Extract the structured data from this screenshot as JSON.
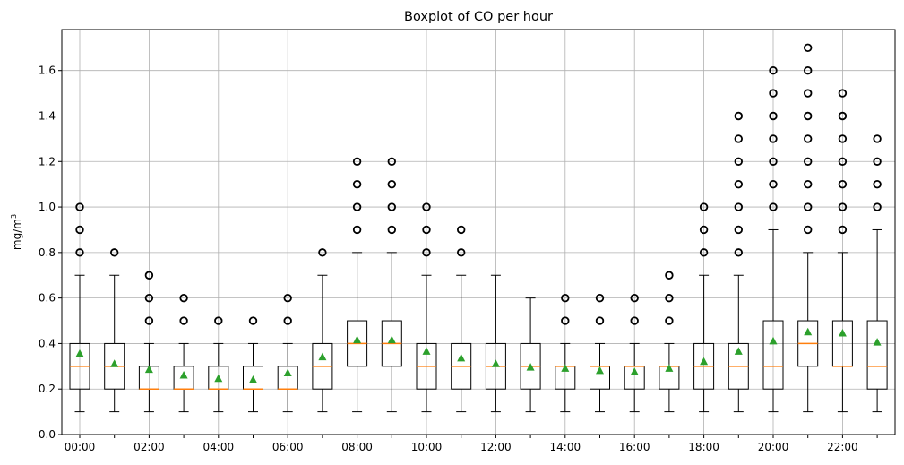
{
  "chart_data": {
    "type": "boxplot",
    "title": "Boxplot of CO per hour",
    "xlabel": "",
    "ylabel": "mg/m",
    "ylabel_superscript": "3",
    "ylim": [
      0,
      1.78
    ],
    "yticks": [
      0.0,
      0.2,
      0.4,
      0.6,
      0.8,
      1.0,
      1.2,
      1.4,
      1.6
    ],
    "ytick_labels": [
      "0.0",
      "0.2",
      "0.4",
      "0.6",
      "0.8",
      "1.0",
      "1.2",
      "1.4",
      "1.6"
    ],
    "xtick_labels": [
      "00:00",
      "02:00",
      "04:00",
      "06:00",
      "08:00",
      "10:00",
      "12:00",
      "14:00",
      "16:00",
      "18:00",
      "20:00",
      "22:00"
    ],
    "grid": true,
    "colors": {
      "box": "#000000",
      "median": "#ff7f0e",
      "mean": "#2ca02c",
      "grid": "#b0b0b0",
      "outlier": "#000000"
    },
    "boxes": [
      {
        "hour": 0,
        "whislo": 0.1,
        "q1": 0.2,
        "med": 0.3,
        "q3": 0.4,
        "whishi": 0.7,
        "mean": 0.355,
        "fliers": [
          0.8,
          0.9,
          1.0
        ]
      },
      {
        "hour": 1,
        "whislo": 0.1,
        "q1": 0.2,
        "med": 0.3,
        "q3": 0.4,
        "whishi": 0.7,
        "mean": 0.31,
        "fliers": [
          0.8
        ]
      },
      {
        "hour": 2,
        "whislo": 0.1,
        "q1": 0.2,
        "med": 0.2,
        "q3": 0.3,
        "whishi": 0.4,
        "mean": 0.285,
        "fliers": [
          0.5,
          0.6,
          0.7
        ]
      },
      {
        "hour": 3,
        "whislo": 0.1,
        "q1": 0.2,
        "med": 0.2,
        "q3": 0.3,
        "whishi": 0.4,
        "mean": 0.26,
        "fliers": [
          0.5,
          0.6
        ]
      },
      {
        "hour": 4,
        "whislo": 0.1,
        "q1": 0.2,
        "med": 0.2,
        "q3": 0.3,
        "whishi": 0.4,
        "mean": 0.245,
        "fliers": [
          0.5
        ]
      },
      {
        "hour": 5,
        "whislo": 0.1,
        "q1": 0.2,
        "med": 0.2,
        "q3": 0.3,
        "whishi": 0.4,
        "mean": 0.24,
        "fliers": [
          0.5
        ]
      },
      {
        "hour": 6,
        "whislo": 0.1,
        "q1": 0.2,
        "med": 0.2,
        "q3": 0.3,
        "whishi": 0.4,
        "mean": 0.27,
        "fliers": [
          0.5,
          0.6
        ]
      },
      {
        "hour": 7,
        "whislo": 0.1,
        "q1": 0.2,
        "med": 0.3,
        "q3": 0.4,
        "whishi": 0.7,
        "mean": 0.34,
        "fliers": [
          0.8
        ]
      },
      {
        "hour": 8,
        "whislo": 0.1,
        "q1": 0.3,
        "med": 0.4,
        "q3": 0.5,
        "whishi": 0.8,
        "mean": 0.415,
        "fliers": [
          0.9,
          1.0,
          1.1,
          1.2
        ]
      },
      {
        "hour": 9,
        "whislo": 0.1,
        "q1": 0.3,
        "med": 0.4,
        "q3": 0.5,
        "whishi": 0.8,
        "mean": 0.415,
        "fliers": [
          0.9,
          1.0,
          1.1,
          1.2
        ]
      },
      {
        "hour": 10,
        "whislo": 0.1,
        "q1": 0.2,
        "med": 0.3,
        "q3": 0.4,
        "whishi": 0.7,
        "mean": 0.365,
        "fliers": [
          0.8,
          0.9,
          1.0
        ]
      },
      {
        "hour": 11,
        "whislo": 0.1,
        "q1": 0.2,
        "med": 0.3,
        "q3": 0.4,
        "whishi": 0.7,
        "mean": 0.335,
        "fliers": [
          0.8,
          0.9
        ]
      },
      {
        "hour": 12,
        "whislo": 0.1,
        "q1": 0.2,
        "med": 0.3,
        "q3": 0.4,
        "whishi": 0.7,
        "mean": 0.31,
        "fliers": []
      },
      {
        "hour": 13,
        "whislo": 0.1,
        "q1": 0.2,
        "med": 0.3,
        "q3": 0.4,
        "whishi": 0.6,
        "mean": 0.295,
        "fliers": []
      },
      {
        "hour": 14,
        "whislo": 0.1,
        "q1": 0.2,
        "med": 0.3,
        "q3": 0.3,
        "whishi": 0.4,
        "mean": 0.29,
        "fliers": [
          0.5,
          0.6
        ]
      },
      {
        "hour": 15,
        "whislo": 0.1,
        "q1": 0.2,
        "med": 0.3,
        "q3": 0.3,
        "whishi": 0.4,
        "mean": 0.28,
        "fliers": [
          0.5,
          0.6
        ]
      },
      {
        "hour": 16,
        "whislo": 0.1,
        "q1": 0.2,
        "med": 0.3,
        "q3": 0.3,
        "whishi": 0.4,
        "mean": 0.275,
        "fliers": [
          0.5,
          0.6
        ]
      },
      {
        "hour": 17,
        "whislo": 0.1,
        "q1": 0.2,
        "med": 0.3,
        "q3": 0.3,
        "whishi": 0.4,
        "mean": 0.29,
        "fliers": [
          0.5,
          0.6,
          0.7
        ]
      },
      {
        "hour": 18,
        "whislo": 0.1,
        "q1": 0.2,
        "med": 0.3,
        "q3": 0.4,
        "whishi": 0.7,
        "mean": 0.32,
        "fliers": [
          0.8,
          0.9,
          1.0
        ]
      },
      {
        "hour": 19,
        "whislo": 0.1,
        "q1": 0.2,
        "med": 0.3,
        "q3": 0.4,
        "whishi": 0.7,
        "mean": 0.365,
        "fliers": [
          0.8,
          0.9,
          1.0,
          1.1,
          1.2,
          1.3,
          1.4
        ]
      },
      {
        "hour": 20,
        "whislo": 0.1,
        "q1": 0.2,
        "med": 0.3,
        "q3": 0.5,
        "whishi": 0.9,
        "mean": 0.41,
        "fliers": [
          1.0,
          1.1,
          1.2,
          1.3,
          1.4,
          1.5,
          1.6
        ]
      },
      {
        "hour": 21,
        "whislo": 0.1,
        "q1": 0.3,
        "med": 0.4,
        "q3": 0.5,
        "whishi": 0.8,
        "mean": 0.45,
        "fliers": [
          0.9,
          1.0,
          1.1,
          1.2,
          1.3,
          1.4,
          1.5,
          1.6,
          1.7
        ]
      },
      {
        "hour": 22,
        "whislo": 0.1,
        "q1": 0.3,
        "med": 0.3,
        "q3": 0.5,
        "whishi": 0.8,
        "mean": 0.445,
        "fliers": [
          0.9,
          1.0,
          1.1,
          1.2,
          1.3,
          1.4,
          1.5
        ]
      },
      {
        "hour": 23,
        "whislo": 0.1,
        "q1": 0.2,
        "med": 0.3,
        "q3": 0.5,
        "whishi": 0.9,
        "mean": 0.405,
        "fliers": [
          1.0,
          1.1,
          1.2,
          1.3
        ]
      }
    ]
  }
}
